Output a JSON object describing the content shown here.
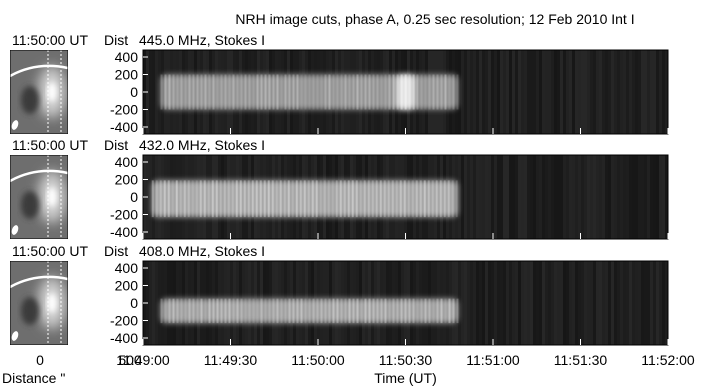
{
  "title": "NRH image cuts, phase A, 0.25 sec resolution; 12 Feb 2010 Int I",
  "colors": {
    "background": "#ffffff",
    "text": "#000000",
    "panel_bg": "#1a1a1a",
    "limb_arc": "#ffffff",
    "cut_lines": "#ffffff"
  },
  "chart_data": [
    {
      "type": "heatmap",
      "panel": "NRH dynamic image cut",
      "image_time_label": "11:50:00 UT",
      "frequency_label": "445.0 MHz, Stokes I",
      "ylabel": "Dist",
      "yticks": [
        400,
        200,
        0,
        -200,
        -400
      ],
      "ylim": [
        -480,
        480
      ],
      "xlabel": "",
      "xlim": [
        "11:49:00",
        "11:52:00"
      ],
      "emission": [
        {
          "t_start": "11:49:06",
          "t_end": "11:50:48",
          "dist_center": 0,
          "dist_halfwidth": 200,
          "level": 0.6
        },
        {
          "t_start": "11:50:27",
          "t_end": "11:50:33",
          "dist_center": 0,
          "dist_halfwidth": 200,
          "level": 1.0
        }
      ],
      "inset_xticks": [
        0,
        500
      ]
    },
    {
      "type": "heatmap",
      "panel": "NRH dynamic image cut",
      "image_time_label": "11:50:00 UT",
      "frequency_label": "432.0 MHz, Stokes I",
      "ylabel": "Dist",
      "yticks": [
        400,
        200,
        0,
        -200,
        -400
      ],
      "ylim": [
        -480,
        480
      ],
      "xlabel": "",
      "xlim": [
        "11:49:00",
        "11:52:00"
      ],
      "emission": [
        {
          "t_start": "11:49:03",
          "t_end": "11:50:48",
          "dist_center": -20,
          "dist_halfwidth": 210,
          "level": 0.75
        }
      ],
      "inset_xticks": [
        0,
        500
      ]
    },
    {
      "type": "heatmap",
      "panel": "NRH dynamic image cut",
      "image_time_label": "11:50:00 UT",
      "frequency_label": "408.0 MHz, Stokes I",
      "ylabel": "Dist",
      "yticks": [
        400,
        200,
        0,
        -200,
        -400
      ],
      "ylim": [
        -480,
        480
      ],
      "xlabel": "Time (UT)",
      "xticks": [
        "11:49:00",
        "11:49:30",
        "11:50:00",
        "11:50:30",
        "11:51:00",
        "11:51:30",
        "11:52:00"
      ],
      "xlim": [
        "11:49:00",
        "11:52:00"
      ],
      "emission": [
        {
          "t_start": "11:49:06",
          "t_end": "11:50:48",
          "dist_center": -90,
          "dist_halfwidth": 140,
          "level": 0.7
        }
      ],
      "inset_xticks": [
        0,
        500
      ],
      "inset_xlabel": "Distance \""
    }
  ]
}
